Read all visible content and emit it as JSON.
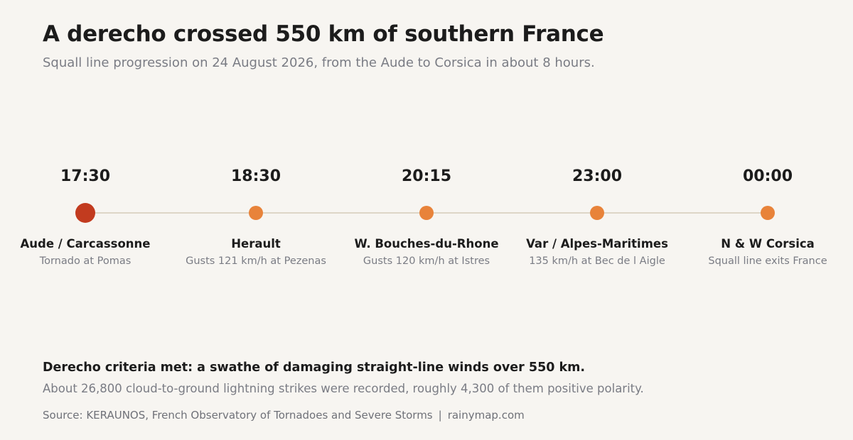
{
  "header": {
    "title": "A derecho crossed 550 km of southern France",
    "subtitle": "Squall line progression on 24 August 2026, from the Aude to Corsica in about 8 hours."
  },
  "timeline": {
    "stops": [
      {
        "time": "17:30",
        "place": "Aude / Carcassonne",
        "note": "Tornado at Pomas"
      },
      {
        "time": "18:30",
        "place": "Herault",
        "note": "Gusts 121 km/h at Pezenas"
      },
      {
        "time": "20:15",
        "place": "W. Bouches-du-Rhone",
        "note": "Gusts 120 km/h at Istres"
      },
      {
        "time": "23:00",
        "place": "Var / Alpes-Maritimes",
        "note": "135 km/h at Bec de l Aigle"
      },
      {
        "time": "00:00",
        "place": "N & W Corsica",
        "note": "Squall line exits France"
      }
    ],
    "colors": {
      "first_dot": "#c23b1f",
      "dot": "#e8833a",
      "track": "#ddd6c7"
    }
  },
  "footer": {
    "criteria": "Derecho criteria met: a swathe of damaging straight-line winds over 550 km.",
    "lightning": "About 26,800 cloud-to-ground lightning strikes were recorded, roughly 4,300 of them positive polarity.",
    "source": "Source: KERAUNOS, French Observatory of Tornadoes and Severe Storms",
    "separator": "|",
    "site": "rainymap.com"
  }
}
